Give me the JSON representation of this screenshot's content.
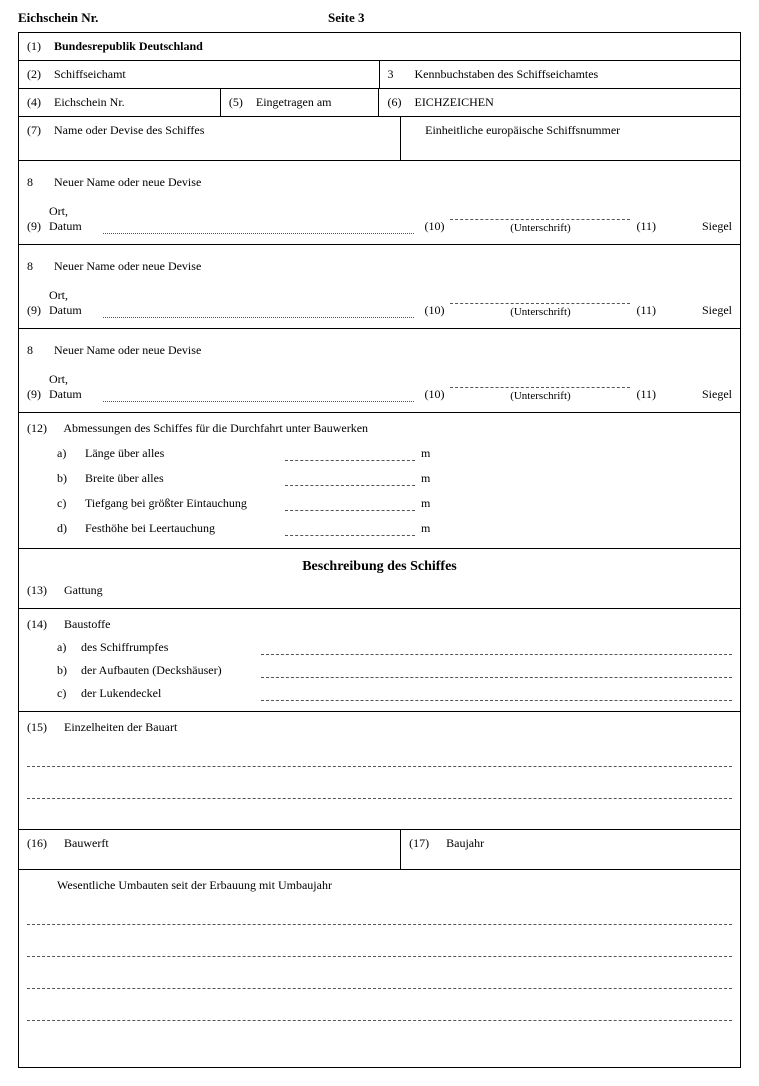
{
  "header": {
    "left": "Eichschein Nr.",
    "page": "Seite 3"
  },
  "row1": {
    "num": "(1)",
    "text": "Bundesrepublik Deutschland"
  },
  "row2": {
    "left_num": "(2)",
    "left_text": "Schiffseichamt",
    "right_num": "3",
    "right_text": "Kennbuchstaben des Schiffseichamtes"
  },
  "row3": {
    "c1_num": "(4)",
    "c1_text": "Eichschein Nr.",
    "c2_num": "(5)",
    "c2_text": "Eingetragen am",
    "c3_num": "(6)",
    "c3_text": "EICHZEICHEN"
  },
  "row4": {
    "left_num": "(7)",
    "left_text": "Name oder Devise des Schiffes",
    "right_text": "Einheitliche europäische Schiffsnummer"
  },
  "nameBlock": {
    "top_num": "8",
    "top_text": "Neuer Name oder neue Devise",
    "bottom_num": "(9)",
    "bottom_text": "Ort, Datum",
    "mid_paren": "(10)",
    "sig_label": "(Unterschrift)",
    "right_paren": "(11)",
    "siegel": "Siegel"
  },
  "sec12": {
    "num": "(12)",
    "title": "Abmessungen des Schiffes für die Durchfahrt unter Bauwerken",
    "rows": [
      {
        "letter": "a)",
        "label": "Länge über alles",
        "unit": "m"
      },
      {
        "letter": "b)",
        "label": "Breite über alles",
        "unit": "m"
      },
      {
        "letter": "c)",
        "label": "Tiefgang bei größter Eintauchung",
        "unit": "m"
      },
      {
        "letter": "d)",
        "label": "Festhöhe bei Leertauchung",
        "unit": "m"
      }
    ]
  },
  "descTitle": "Beschreibung des Schiffes",
  "sec13": {
    "num": "(13)",
    "text": "Gattung"
  },
  "sec14": {
    "num": "(14)",
    "title": "Baustoffe",
    "rows": [
      {
        "letter": "a)",
        "label": "des Schiffrumpfes"
      },
      {
        "letter": "b)",
        "label": "der Aufbauten (Deckshäuser)"
      },
      {
        "letter": "c)",
        "label": "der Lukendeckel"
      }
    ]
  },
  "sec15": {
    "num": "(15)",
    "text": "Einzelheiten der Bauart"
  },
  "row16": {
    "left_num": "(16)",
    "left_text": "Bauwerft",
    "right_num": "(17)",
    "right_text": "Baujahr"
  },
  "rebuild": {
    "text": "Wesentliche Umbauten seit der Erbauung mit Umbaujahr"
  }
}
